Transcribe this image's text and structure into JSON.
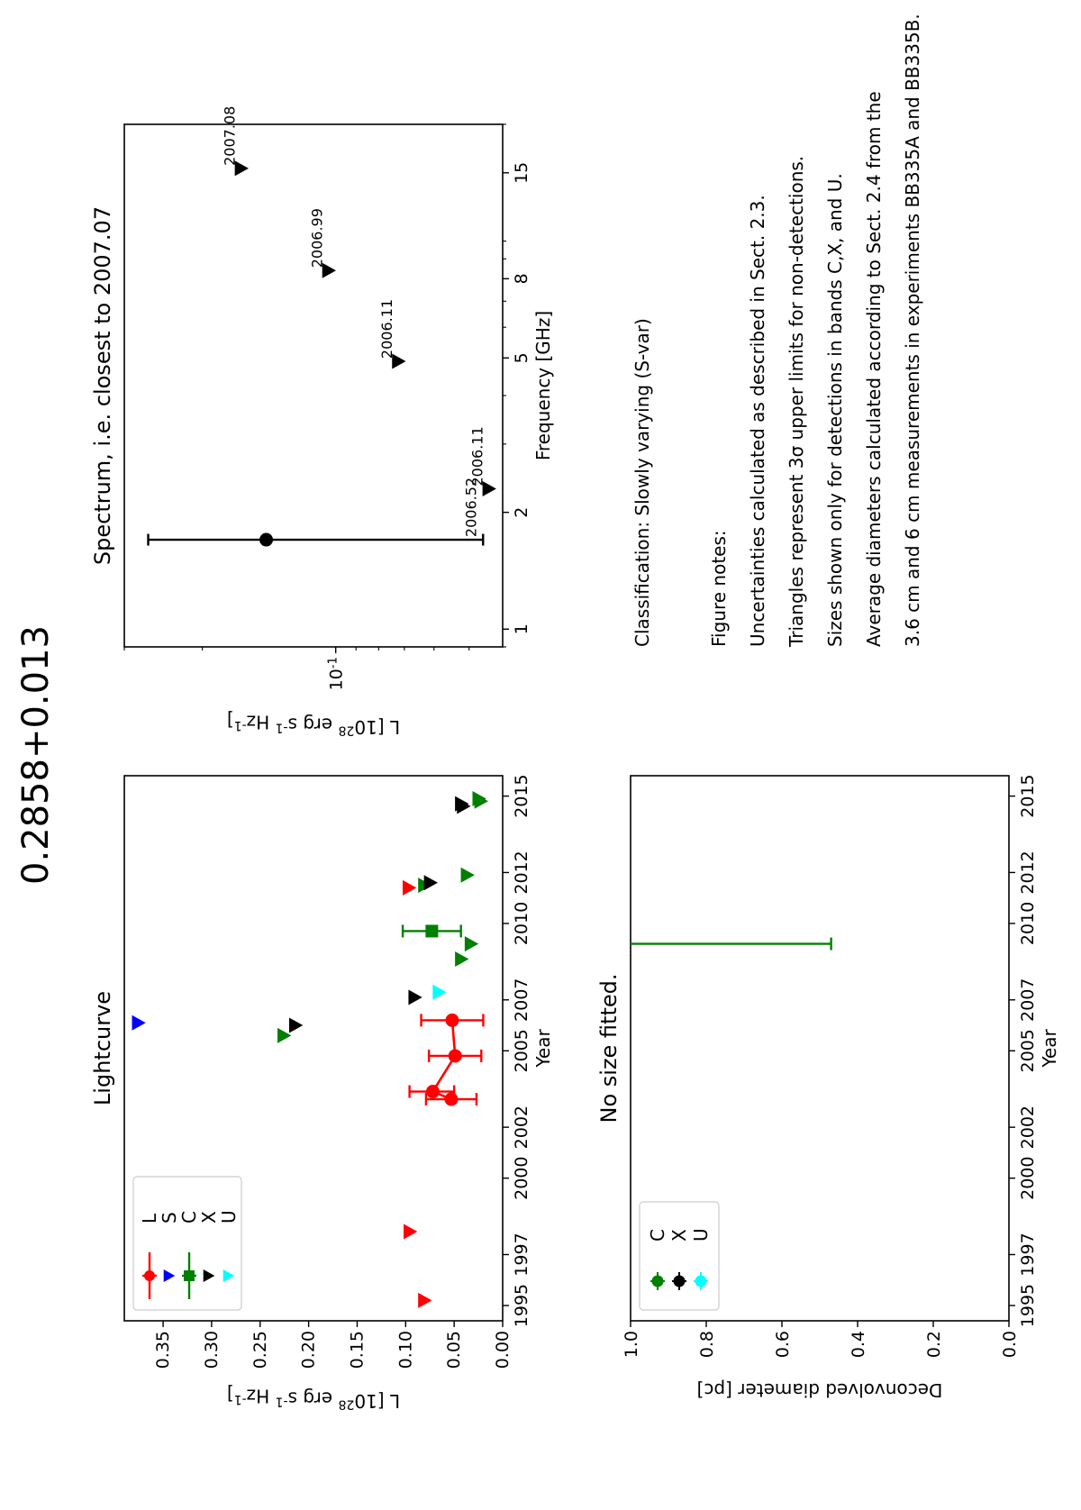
{
  "figure": {
    "title": "0.2858+0.013"
  },
  "colors": {
    "L": "#ff0000",
    "S": "#0000ff",
    "C": "#008000",
    "X": "#000000",
    "U": "#00ffff"
  },
  "chart_data": [
    {
      "id": "lightcurve",
      "type": "scatter",
      "title": "Lightcurve",
      "xlabel": "Year",
      "ylabel": "L [10^28 erg s^-1 Hz^-1]",
      "xlim": [
        1994.4,
        2015.8
      ],
      "ylim": [
        0.0,
        0.39
      ],
      "xticks": [
        1995,
        1997,
        2000,
        2002,
        2005,
        2007,
        2010,
        2012,
        2015
      ],
      "yticks": [
        0.0,
        0.05,
        0.1,
        0.15,
        0.2,
        0.25,
        0.3,
        0.35
      ],
      "ytick_labels": [
        "0.00",
        "0.05",
        "0.10",
        "0.15",
        "0.20",
        "0.25",
        "0.30",
        "0.35"
      ],
      "legend": {
        "placement": "top-left",
        "entries": [
          "L",
          "S",
          "C",
          "X",
          "U"
        ]
      },
      "series": [
        {
          "name": "L",
          "band": "L",
          "kind": "detection",
          "connected": true,
          "points": [
            {
              "x": 2003.1,
              "y": 0.053,
              "ylo": 0.027,
              "yhi": 0.079
            },
            {
              "x": 2003.4,
              "y": 0.072,
              "ylo": 0.05,
              "yhi": 0.096
            },
            {
              "x": 2004.8,
              "y": 0.049,
              "ylo": 0.022,
              "yhi": 0.076
            },
            {
              "x": 2006.2,
              "y": 0.052,
              "ylo": 0.02,
              "yhi": 0.084
            }
          ]
        },
        {
          "name": "L upper limits",
          "band": "L",
          "kind": "upper_limit",
          "points": [
            {
              "x": 1995.2,
              "y": 0.08
            },
            {
              "x": 1997.9,
              "y": 0.095
            },
            {
              "x": 2011.4,
              "y": 0.096
            }
          ]
        },
        {
          "name": "S upper limits",
          "band": "S",
          "kind": "upper_limit",
          "points": [
            {
              "x": 2006.1,
              "y": 0.375
            }
          ]
        },
        {
          "name": "C",
          "band": "C",
          "kind": "detection",
          "points": [
            {
              "x": 2009.7,
              "y": 0.073,
              "ylo": 0.043,
              "yhi": 0.103
            }
          ]
        },
        {
          "name": "C upper limits",
          "band": "C",
          "kind": "upper_limit",
          "points": [
            {
              "x": 2005.6,
              "y": 0.225
            },
            {
              "x": 2008.6,
              "y": 0.042
            },
            {
              "x": 2009.2,
              "y": 0.032
            },
            {
              "x": 2011.5,
              "y": 0.08
            },
            {
              "x": 2011.9,
              "y": 0.036
            },
            {
              "x": 2014.8,
              "y": 0.022
            },
            {
              "x": 2014.9,
              "y": 0.024
            }
          ]
        },
        {
          "name": "X upper limits",
          "band": "X",
          "kind": "upper_limit",
          "points": [
            {
              "x": 2006.0,
              "y": 0.213
            },
            {
              "x": 2007.1,
              "y": 0.09
            },
            {
              "x": 2011.6,
              "y": 0.074
            },
            {
              "x": 2014.6,
              "y": 0.04
            },
            {
              "x": 2014.7,
              "y": 0.042
            }
          ]
        },
        {
          "name": "U upper limits",
          "band": "U",
          "kind": "upper_limit",
          "points": [
            {
              "x": 2007.3,
              "y": 0.065
            }
          ]
        }
      ]
    },
    {
      "id": "spectrum",
      "type": "scatter",
      "title": "Spectrum, i.e. closest to 2007.07",
      "xlabel": "Frequency [GHz]",
      "ylabel": "L [10^28 erg s^-1 Hz^-1]",
      "xscale": "log",
      "yscale": "log",
      "xlim": [
        0.9,
        20.0
      ],
      "ylim": [
        0.042,
        0.3
      ],
      "xticks": [
        1,
        2,
        5,
        8,
        15
      ],
      "yticks_major": [
        0.1
      ],
      "ytick_labels": [
        "10^-1"
      ],
      "yticks_minor": [
        0.05,
        0.06,
        0.07,
        0.08,
        0.09,
        0.2,
        0.3
      ],
      "points": [
        {
          "x": 1.7,
          "kind": "detection",
          "y": 0.1435,
          "ylo": 0.0465,
          "yhi": 0.265,
          "label": "2006.52"
        },
        {
          "x": 2.3,
          "kind": "upper_limit",
          "y": 0.045,
          "label": "2006.11"
        },
        {
          "x": 4.9,
          "kind": "upper_limit",
          "y": 0.072,
          "label": "2006.11"
        },
        {
          "x": 8.4,
          "kind": "upper_limit",
          "y": 0.1035,
          "label": "2006.99"
        },
        {
          "x": 15.4,
          "kind": "upper_limit",
          "y": 0.163,
          "label": "2007.08"
        }
      ]
    },
    {
      "id": "size",
      "type": "scatter",
      "title": "",
      "xlabel": "Year",
      "ylabel": "Deconvolved diameter [pc]",
      "xlim": [
        1994.4,
        2015.8
      ],
      "ylim": [
        0.0,
        1.0
      ],
      "xticks": [
        1995,
        1997,
        2000,
        2002,
        2005,
        2007,
        2010,
        2012,
        2015
      ],
      "yticks": [
        0.0,
        0.2,
        0.4,
        0.6,
        0.8,
        1.0
      ],
      "ytick_labels": [
        "0.0",
        "0.2",
        "0.4",
        "0.6",
        "0.8",
        "1.0"
      ],
      "legend": {
        "placement": "top-left",
        "entries": [
          "C",
          "X",
          "U"
        ]
      },
      "annotation": "No size fitted.",
      "series": [
        {
          "name": "C",
          "band": "C",
          "points": [
            {
              "x": 2009.2,
              "y": 1.0,
              "ylo": 0.47,
              "yhi": 1.0
            }
          ]
        }
      ]
    }
  ],
  "notes": {
    "classification": "Classification: Slowly varying (S-var)",
    "heading": "Figure notes:",
    "lines": [
      "Uncertainties calculated as described in Sect. 2.3.",
      "Triangles represent 3σ upper limits for non-detections.",
      "Sizes shown only for detections in bands C,X, and U.",
      "Average diameters calculated according to Sect. 2.4 from the",
      "3.6 cm and 6 cm measurements in experiments BB335A and BB335B."
    ]
  }
}
